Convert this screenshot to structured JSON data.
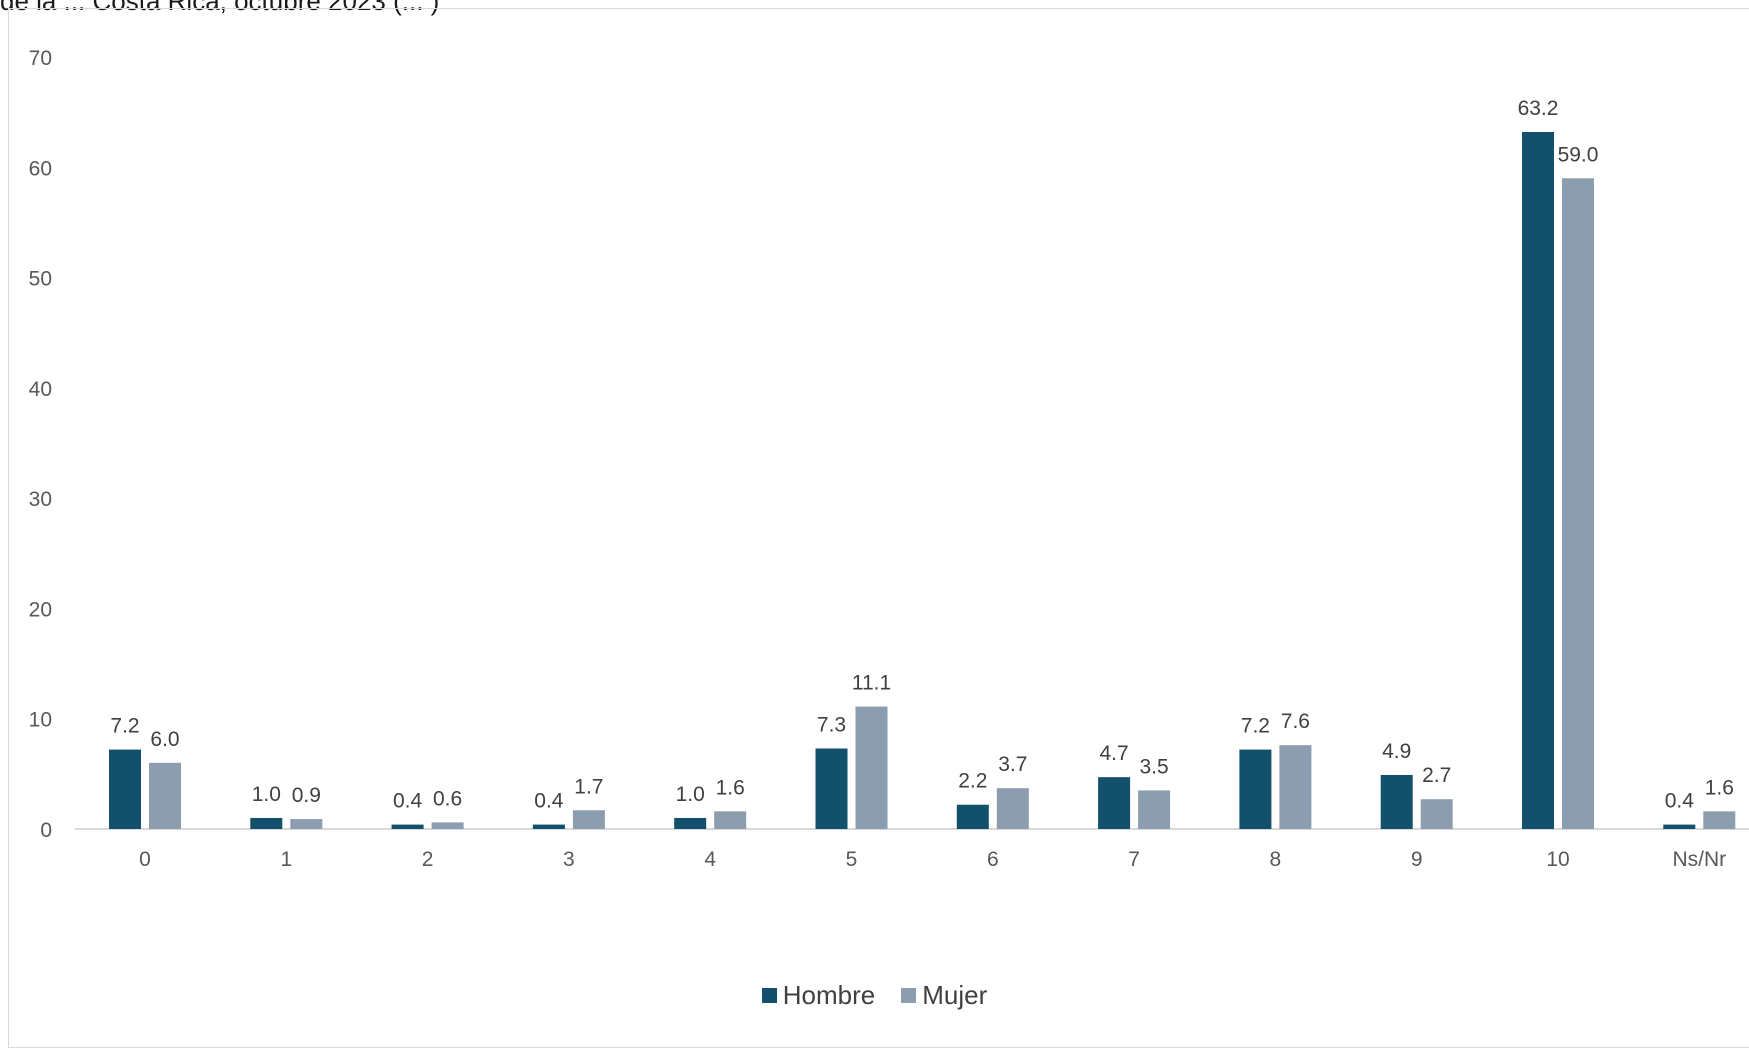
{
  "chart_data": {
    "type": "bar",
    "title": "de la ... Costa Rica, octubre 2023 (... )",
    "xlabel": "",
    "ylabel": "",
    "ylim": [
      0,
      70
    ],
    "yticks": [
      0,
      10,
      20,
      30,
      40,
      50,
      60,
      70
    ],
    "grid": false,
    "legend_position": "bottom",
    "categories": [
      "0",
      "1",
      "2",
      "3",
      "4",
      "5",
      "6",
      "7",
      "8",
      "9",
      "10",
      "Ns/Nr"
    ],
    "series": [
      {
        "name": "Hombre",
        "color": "#12506b",
        "values": [
          7.2,
          1.0,
          0.4,
          0.4,
          1.0,
          7.3,
          2.2,
          4.7,
          7.2,
          4.9,
          63.2,
          0.4
        ]
      },
      {
        "name": "Mujer",
        "color": "#8b9dae",
        "values": [
          6.0,
          0.9,
          0.6,
          1.7,
          1.6,
          11.1,
          3.7,
          3.5,
          7.6,
          2.7,
          59.0,
          1.6
        ]
      }
    ]
  }
}
